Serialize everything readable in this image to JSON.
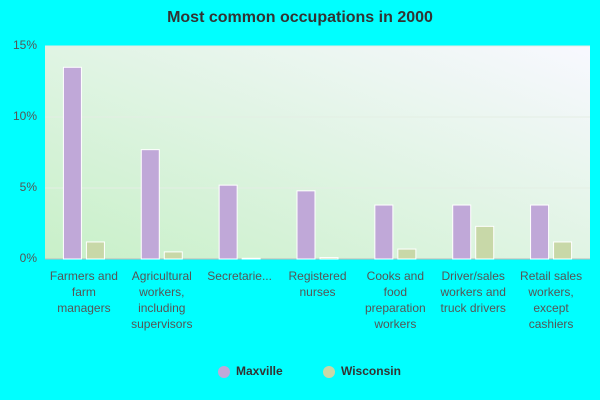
{
  "chart_data": {
    "type": "bar",
    "title": "Most common occupations in 2000",
    "categories": [
      "Farmers and farm managers",
      "Agricultural workers, including supervisors",
      "Secretarie...",
      "Registered nurses",
      "Cooks and food preparation workers",
      "Driver/sales workers and truck drivers",
      "Retail sales workers, except cashiers"
    ],
    "series": [
      {
        "name": "Maxville",
        "color": "#c0a8d8",
        "values": [
          13.5,
          7.7,
          5.2,
          4.8,
          3.8,
          3.8,
          3.8
        ]
      },
      {
        "name": "Wisconsin",
        "color": "#c8d8a8",
        "values": [
          1.2,
          0.5,
          0.05,
          0.1,
          0.7,
          2.3,
          1.2
        ]
      }
    ],
    "ylim": [
      0,
      15
    ],
    "yticks": [
      {
        "value": 0,
        "label": "0%"
      },
      {
        "value": 5,
        "label": "5%"
      },
      {
        "value": 10,
        "label": "10%"
      },
      {
        "value": 15,
        "label": "15%"
      }
    ],
    "grid": true
  }
}
